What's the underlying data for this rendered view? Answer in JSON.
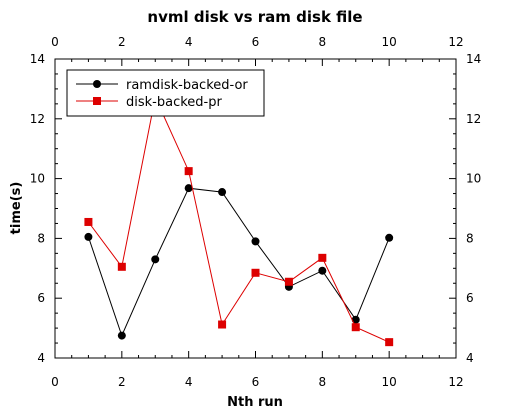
{
  "chart_data": {
    "type": "line",
    "title": "nvml disk vs ram disk file",
    "xlabel": "Nth run",
    "ylabel": "time(s)",
    "xlim": [
      0,
      12
    ],
    "ylim": [
      4,
      14
    ],
    "x_ticks": [
      0,
      2,
      4,
      6,
      8,
      10,
      12
    ],
    "y_ticks": [
      4,
      6,
      8,
      10,
      12,
      14
    ],
    "grid": false,
    "legend_position": "top-left",
    "series": [
      {
        "name": "ramdisk-backed-or",
        "color": "#000000",
        "marker": "circle",
        "x": [
          1,
          2,
          3,
          4,
          5,
          6,
          7,
          8,
          9,
          10
        ],
        "y": [
          8.05,
          4.75,
          7.3,
          9.68,
          9.55,
          7.9,
          6.38,
          6.92,
          5.28,
          8.02
        ]
      },
      {
        "name": "disk-backed-pr",
        "color": "#dd0000",
        "marker": "square",
        "x": [
          1,
          2,
          3,
          4,
          5,
          6,
          7,
          8,
          9,
          10
        ],
        "y": [
          8.55,
          7.05,
          12.72,
          10.25,
          5.12,
          6.85,
          6.55,
          7.35,
          5.03,
          4.53
        ]
      }
    ]
  }
}
